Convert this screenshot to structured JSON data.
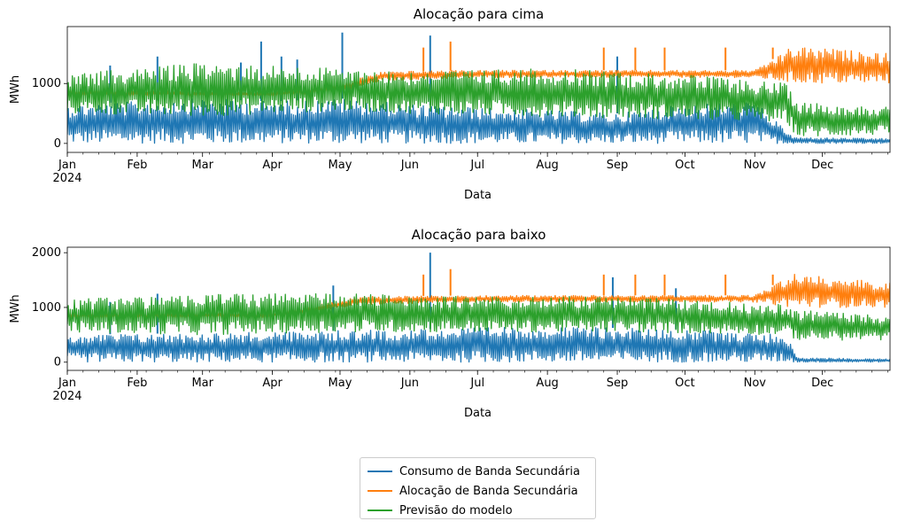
{
  "chart_data": [
    {
      "type": "line",
      "title": "Alocação para cima",
      "xlabel": "Data",
      "ylabel": "MWh",
      "xlim": [
        "2024-01-01",
        "2024-12-31"
      ],
      "ylim": [
        -150,
        1950
      ],
      "yticks": [
        0,
        1000
      ],
      "month_ticks": [
        {
          "date": "2024-01-01",
          "label": "Jan",
          "sublabel": "2024"
        },
        {
          "date": "2024-02-01",
          "label": "Feb"
        },
        {
          "date": "2024-03-01",
          "label": "Mar"
        },
        {
          "date": "2024-04-01",
          "label": "Apr"
        },
        {
          "date": "2024-05-01",
          "label": "May"
        },
        {
          "date": "2024-06-01",
          "label": "Jun"
        },
        {
          "date": "2024-07-01",
          "label": "Jul"
        },
        {
          "date": "2024-08-01",
          "label": "Aug"
        },
        {
          "date": "2024-09-01",
          "label": "Sep"
        },
        {
          "date": "2024-10-01",
          "label": "Oct"
        },
        {
          "date": "2024-11-01",
          "label": "Nov"
        },
        {
          "date": "2024-12-01",
          "label": "Dec"
        }
      ],
      "series": [
        {
          "name": "Consumo de Banda Secundária",
          "color": "#1f77b4",
          "envelope": [
            {
              "date": "2024-01-01",
              "low": 0,
              "high": 650
            },
            {
              "date": "2024-02-01",
              "low": 0,
              "high": 700
            },
            {
              "date": "2024-03-01",
              "low": 0,
              "high": 750
            },
            {
              "date": "2024-04-01",
              "low": 0,
              "high": 700
            },
            {
              "date": "2024-05-01",
              "low": 0,
              "high": 750
            },
            {
              "date": "2024-06-01",
              "low": 0,
              "high": 650
            },
            {
              "date": "2024-07-01",
              "low": 0,
              "high": 600
            },
            {
              "date": "2024-08-01",
              "low": 0,
              "high": 550
            },
            {
              "date": "2024-09-01",
              "low": 0,
              "high": 500
            },
            {
              "date": "2024-10-01",
              "low": 0,
              "high": 650
            },
            {
              "date": "2024-11-01",
              "low": 0,
              "high": 700
            },
            {
              "date": "2024-11-18",
              "low": 0,
              "high": 100
            },
            {
              "date": "2024-12-31",
              "low": 0,
              "high": 80
            }
          ],
          "spikes": [
            {
              "date": "2024-01-20",
              "value": 1300
            },
            {
              "date": "2024-02-10",
              "value": 1450
            },
            {
              "date": "2024-03-18",
              "value": 1350
            },
            {
              "date": "2024-03-27",
              "value": 1700
            },
            {
              "date": "2024-04-05",
              "value": 1450
            },
            {
              "date": "2024-04-12",
              "value": 1400
            },
            {
              "date": "2024-05-02",
              "value": 1850
            },
            {
              "date": "2024-06-10",
              "value": 1800
            },
            {
              "date": "2024-09-01",
              "value": 1450
            }
          ]
        },
        {
          "name": "Alocação de Banda Secundária",
          "color": "#ff7f0e",
          "envelope": [
            {
              "date": "2024-01-01",
              "low": 780,
              "high": 900
            },
            {
              "date": "2024-04-01",
              "low": 780,
              "high": 850
            },
            {
              "date": "2024-05-01",
              "low": 850,
              "high": 1000
            },
            {
              "date": "2024-05-20",
              "low": 1050,
              "high": 1200
            },
            {
              "date": "2024-07-01",
              "low": 1100,
              "high": 1220
            },
            {
              "date": "2024-09-01",
              "low": 1100,
              "high": 1220
            },
            {
              "date": "2024-11-01",
              "low": 1100,
              "high": 1220
            },
            {
              "date": "2024-11-18",
              "low": 1000,
              "high": 1620
            },
            {
              "date": "2024-12-31",
              "low": 1000,
              "high": 1500
            }
          ],
          "spikes": [
            {
              "date": "2024-06-07",
              "value": 1600
            },
            {
              "date": "2024-06-19",
              "value": 1700
            },
            {
              "date": "2024-08-26",
              "value": 1600
            },
            {
              "date": "2024-09-09",
              "value": 1600
            },
            {
              "date": "2024-09-22",
              "value": 1600
            },
            {
              "date": "2024-10-19",
              "value": 1600
            },
            {
              "date": "2024-11-09",
              "value": 1600
            }
          ]
        },
        {
          "name": "Previsão do modelo",
          "color": "#2ca02c",
          "envelope": [
            {
              "date": "2024-01-01",
              "low": 500,
              "high": 1150
            },
            {
              "date": "2024-03-01",
              "low": 450,
              "high": 1350
            },
            {
              "date": "2024-04-01",
              "low": 500,
              "high": 1300
            },
            {
              "date": "2024-05-01",
              "low": 550,
              "high": 1250
            },
            {
              "date": "2024-06-01",
              "low": 500,
              "high": 1200
            },
            {
              "date": "2024-08-01",
              "low": 450,
              "high": 1250
            },
            {
              "date": "2024-10-01",
              "low": 400,
              "high": 1150
            },
            {
              "date": "2024-11-15",
              "low": 350,
              "high": 1000
            },
            {
              "date": "2024-11-20",
              "low": 100,
              "high": 700
            },
            {
              "date": "2024-12-31",
              "low": 150,
              "high": 600
            }
          ],
          "spikes": []
        }
      ]
    },
    {
      "type": "line",
      "title": "Alocação para baixo",
      "xlabel": "Data",
      "ylabel": "MWh",
      "xlim": [
        "2024-01-01",
        "2024-12-31"
      ],
      "ylim": [
        -150,
        2100
      ],
      "yticks": [
        0,
        1000,
        2000
      ],
      "month_ticks": [
        {
          "date": "2024-01-01",
          "label": "Jan",
          "sublabel": "2024"
        },
        {
          "date": "2024-02-01",
          "label": "Feb"
        },
        {
          "date": "2024-03-01",
          "label": "Mar"
        },
        {
          "date": "2024-04-01",
          "label": "Apr"
        },
        {
          "date": "2024-05-01",
          "label": "May"
        },
        {
          "date": "2024-06-01",
          "label": "Jun"
        },
        {
          "date": "2024-07-01",
          "label": "Jul"
        },
        {
          "date": "2024-08-01",
          "label": "Aug"
        },
        {
          "date": "2024-09-01",
          "label": "Sep"
        },
        {
          "date": "2024-10-01",
          "label": "Oct"
        },
        {
          "date": "2024-11-01",
          "label": "Nov"
        },
        {
          "date": "2024-12-01",
          "label": "Dec"
        }
      ],
      "series": [
        {
          "name": "Consumo de Banda Secundária",
          "color": "#1f77b4",
          "envelope": [
            {
              "date": "2024-01-01",
              "low": 0,
              "high": 500
            },
            {
              "date": "2024-04-01",
              "low": 0,
              "high": 550
            },
            {
              "date": "2024-06-01",
              "low": 0,
              "high": 600
            },
            {
              "date": "2024-08-01",
              "low": 0,
              "high": 650
            },
            {
              "date": "2024-10-01",
              "low": 0,
              "high": 600
            },
            {
              "date": "2024-11-15",
              "low": 0,
              "high": 500
            },
            {
              "date": "2024-11-20",
              "low": 0,
              "high": 80
            },
            {
              "date": "2024-12-31",
              "low": 0,
              "high": 60
            }
          ],
          "spikes": [
            {
              "date": "2024-01-20",
              "value": 1100
            },
            {
              "date": "2024-02-10",
              "value": 1250
            },
            {
              "date": "2024-04-28",
              "value": 1400
            },
            {
              "date": "2024-06-10",
              "value": 2000
            },
            {
              "date": "2024-08-30",
              "value": 1550
            },
            {
              "date": "2024-09-27",
              "value": 1350
            }
          ]
        },
        {
          "name": "Alocação de Banda Secundária",
          "color": "#ff7f0e",
          "envelope": [
            {
              "date": "2024-01-01",
              "low": 800,
              "high": 900
            },
            {
              "date": "2024-04-01",
              "low": 800,
              "high": 900
            },
            {
              "date": "2024-05-10",
              "low": 1050,
              "high": 1200
            },
            {
              "date": "2024-07-01",
              "low": 1100,
              "high": 1220
            },
            {
              "date": "2024-09-01",
              "low": 1100,
              "high": 1220
            },
            {
              "date": "2024-11-01",
              "low": 1100,
              "high": 1220
            },
            {
              "date": "2024-11-18",
              "low": 1000,
              "high": 1620
            },
            {
              "date": "2024-12-31",
              "low": 1000,
              "high": 1450
            }
          ],
          "spikes": [
            {
              "date": "2024-06-07",
              "value": 1600
            },
            {
              "date": "2024-06-19",
              "value": 1700
            },
            {
              "date": "2024-08-26",
              "value": 1600
            },
            {
              "date": "2024-09-09",
              "value": 1600
            },
            {
              "date": "2024-09-22",
              "value": 1600
            },
            {
              "date": "2024-10-19",
              "value": 1600
            },
            {
              "date": "2024-11-09",
              "value": 1600
            }
          ]
        },
        {
          "name": "Previsão do modelo",
          "color": "#2ca02c",
          "envelope": [
            {
              "date": "2024-01-01",
              "low": 550,
              "high": 1150
            },
            {
              "date": "2024-03-01",
              "low": 500,
              "high": 1250
            },
            {
              "date": "2024-05-01",
              "low": 550,
              "high": 1250
            },
            {
              "date": "2024-07-01",
              "low": 550,
              "high": 1200
            },
            {
              "date": "2024-09-01",
              "low": 550,
              "high": 1200
            },
            {
              "date": "2024-11-15",
              "low": 500,
              "high": 1050
            },
            {
              "date": "2024-11-20",
              "low": 400,
              "high": 950
            },
            {
              "date": "2024-12-31",
              "low": 400,
              "high": 850
            }
          ],
          "spikes": []
        }
      ]
    }
  ],
  "legend": [
    {
      "label": "Consumo de Banda Secundária",
      "color": "#1f77b4"
    },
    {
      "label": "Alocação de Banda Secundária",
      "color": "#ff7f0e"
    },
    {
      "label": "Previsão do modelo",
      "color": "#2ca02c"
    }
  ]
}
